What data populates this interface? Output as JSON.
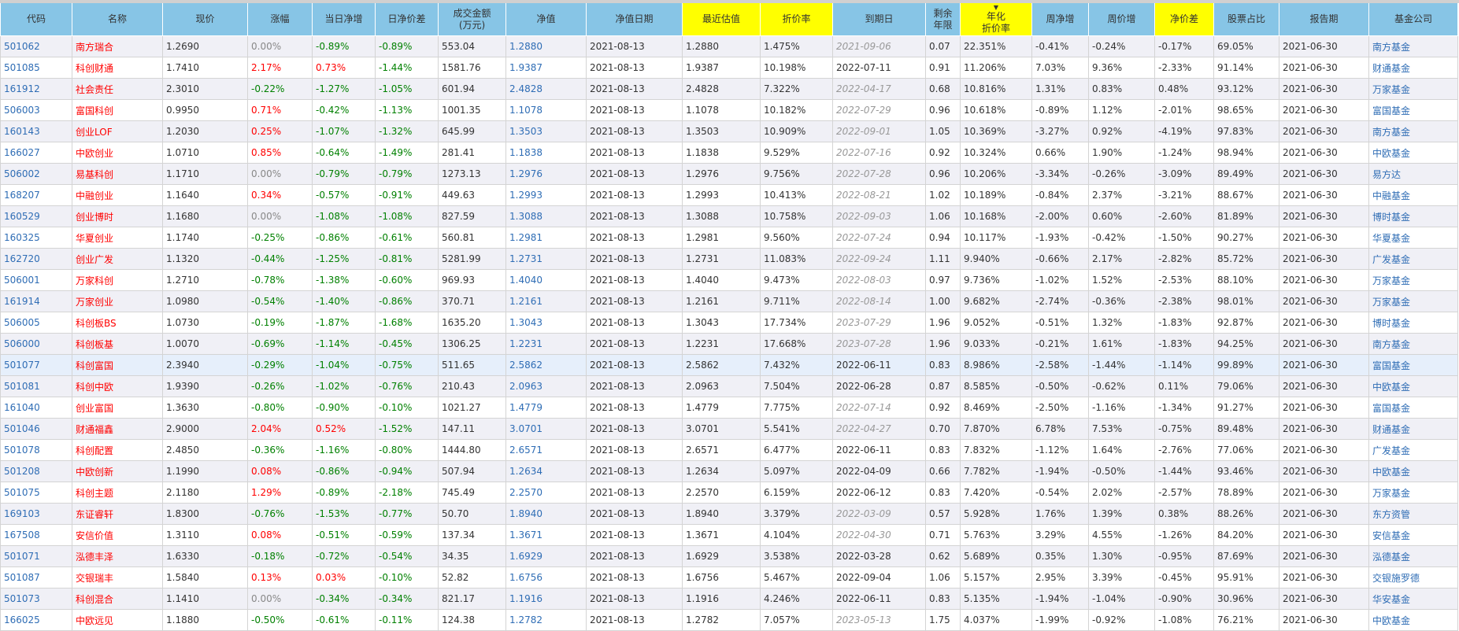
{
  "headers": [
    {
      "label": "代码",
      "highlight": false
    },
    {
      "label": "名称",
      "highlight": false
    },
    {
      "label": "现价",
      "highlight": false
    },
    {
      "label": "涨幅",
      "highlight": false
    },
    {
      "label": "当日净增",
      "highlight": false
    },
    {
      "label": "日净价差",
      "highlight": false
    },
    {
      "label": "成交金额\n(万元)",
      "highlight": false
    },
    {
      "label": "净值",
      "highlight": false
    },
    {
      "label": "净值日期",
      "highlight": false
    },
    {
      "label": "最近估值",
      "highlight": true
    },
    {
      "label": "折价率",
      "highlight": true
    },
    {
      "label": "到期日",
      "highlight": false
    },
    {
      "label": "剩余\n年限",
      "highlight": false
    },
    {
      "label": "年化\n折价率",
      "highlight": true,
      "sorted": "desc"
    },
    {
      "label": "周净增",
      "highlight": false
    },
    {
      "label": "周价增",
      "highlight": false
    },
    {
      "label": "净价差",
      "highlight": true
    },
    {
      "label": "股票占比",
      "highlight": false
    },
    {
      "label": "报告期",
      "highlight": false
    },
    {
      "label": "基金公司",
      "highlight": false
    }
  ],
  "colors": {
    "header": "#87c5e6",
    "highlight_header": "#ffff00",
    "up": "#ff0000",
    "down": "#008000",
    "link": "#2f6db5"
  },
  "sort_icon": "triangle-down-icon",
  "rows": [
    [
      "501062",
      "南方瑞合",
      "1.2690",
      "0.00%",
      "-0.89%",
      "-0.89%",
      "553.04",
      "1.2880",
      "2021-08-13",
      "1.2880",
      "1.475%",
      "2021-09-06",
      "0.07",
      "22.351%",
      "-0.41%",
      "-0.24%",
      "-0.17%",
      "69.05%",
      "2021-06-30",
      "南方基金",
      true
    ],
    [
      "501085",
      "科创财通",
      "1.7410",
      "2.17%",
      "0.73%",
      "-1.44%",
      "1581.76",
      "1.9387",
      "2021-08-13",
      "1.9387",
      "10.198%",
      "2022-07-11",
      "0.91",
      "11.206%",
      "7.03%",
      "9.36%",
      "-2.33%",
      "91.14%",
      "2021-06-30",
      "财通基金",
      false
    ],
    [
      "161912",
      "社会责任",
      "2.3010",
      "-0.22%",
      "-1.27%",
      "-1.05%",
      "601.94",
      "2.4828",
      "2021-08-13",
      "2.4828",
      "7.322%",
      "2022-04-17",
      "0.68",
      "10.816%",
      "1.31%",
      "0.83%",
      "0.48%",
      "93.12%",
      "2021-06-30",
      "万家基金",
      true
    ],
    [
      "506003",
      "富国科创",
      "0.9950",
      "0.71%",
      "-0.42%",
      "-1.13%",
      "1001.35",
      "1.1078",
      "2021-08-13",
      "1.1078",
      "10.182%",
      "2022-07-29",
      "0.96",
      "10.618%",
      "-0.89%",
      "1.12%",
      "-2.01%",
      "98.65%",
      "2021-06-30",
      "富国基金",
      true
    ],
    [
      "160143",
      "创业LOF",
      "1.2030",
      "0.25%",
      "-1.07%",
      "-1.32%",
      "645.99",
      "1.3503",
      "2021-08-13",
      "1.3503",
      "10.909%",
      "2022-09-01",
      "1.05",
      "10.369%",
      "-3.27%",
      "0.92%",
      "-4.19%",
      "97.83%",
      "2021-06-30",
      "南方基金",
      true
    ],
    [
      "166027",
      "中欧创业",
      "1.0710",
      "0.85%",
      "-0.64%",
      "-1.49%",
      "281.41",
      "1.1838",
      "2021-08-13",
      "1.1838",
      "9.529%",
      "2022-07-16",
      "0.92",
      "10.324%",
      "0.66%",
      "1.90%",
      "-1.24%",
      "98.94%",
      "2021-06-30",
      "中欧基金",
      true
    ],
    [
      "506002",
      "易基科创",
      "1.1710",
      "0.00%",
      "-0.79%",
      "-0.79%",
      "1273.13",
      "1.2976",
      "2021-08-13",
      "1.2976",
      "9.756%",
      "2022-07-28",
      "0.96",
      "10.206%",
      "-3.34%",
      "-0.26%",
      "-3.09%",
      "89.49%",
      "2021-06-30",
      "易方达",
      true
    ],
    [
      "168207",
      "中融创业",
      "1.1640",
      "0.34%",
      "-0.57%",
      "-0.91%",
      "449.63",
      "1.2993",
      "2021-08-13",
      "1.2993",
      "10.413%",
      "2022-08-21",
      "1.02",
      "10.189%",
      "-0.84%",
      "2.37%",
      "-3.21%",
      "88.67%",
      "2021-06-30",
      "中融基金",
      true
    ],
    [
      "160529",
      "创业博时",
      "1.1680",
      "0.00%",
      "-1.08%",
      "-1.08%",
      "827.59",
      "1.3088",
      "2021-08-13",
      "1.3088",
      "10.758%",
      "2022-09-03",
      "1.06",
      "10.168%",
      "-2.00%",
      "0.60%",
      "-2.60%",
      "81.89%",
      "2021-06-30",
      "博时基金",
      true
    ],
    [
      "160325",
      "华夏创业",
      "1.1740",
      "-0.25%",
      "-0.86%",
      "-0.61%",
      "560.81",
      "1.2981",
      "2021-08-13",
      "1.2981",
      "9.560%",
      "2022-07-24",
      "0.94",
      "10.117%",
      "-1.93%",
      "-0.42%",
      "-1.50%",
      "90.27%",
      "2021-06-30",
      "华夏基金",
      true
    ],
    [
      "162720",
      "创业广发",
      "1.1320",
      "-0.44%",
      "-1.25%",
      "-0.81%",
      "5281.99",
      "1.2731",
      "2021-08-13",
      "1.2731",
      "11.083%",
      "2022-09-24",
      "1.11",
      "9.940%",
      "-0.66%",
      "2.17%",
      "-2.82%",
      "85.72%",
      "2021-06-30",
      "广发基金",
      true
    ],
    [
      "506001",
      "万家科创",
      "1.2710",
      "-0.78%",
      "-1.38%",
      "-0.60%",
      "969.93",
      "1.4040",
      "2021-08-13",
      "1.4040",
      "9.473%",
      "2022-08-03",
      "0.97",
      "9.736%",
      "-1.02%",
      "1.52%",
      "-2.53%",
      "88.10%",
      "2021-06-30",
      "万家基金",
      true
    ],
    [
      "161914",
      "万家创业",
      "1.0980",
      "-0.54%",
      "-1.40%",
      "-0.86%",
      "370.71",
      "1.2161",
      "2021-08-13",
      "1.2161",
      "9.711%",
      "2022-08-14",
      "1.00",
      "9.682%",
      "-2.74%",
      "-0.36%",
      "-2.38%",
      "98.01%",
      "2021-06-30",
      "万家基金",
      true
    ],
    [
      "506005",
      "科创板BS",
      "1.0730",
      "-0.19%",
      "-1.87%",
      "-1.68%",
      "1635.20",
      "1.3043",
      "2021-08-13",
      "1.3043",
      "17.734%",
      "2023-07-29",
      "1.96",
      "9.052%",
      "-0.51%",
      "1.32%",
      "-1.83%",
      "92.87%",
      "2021-06-30",
      "博时基金",
      true
    ],
    [
      "506000",
      "科创板基",
      "1.0070",
      "-0.69%",
      "-1.14%",
      "-0.45%",
      "1306.25",
      "1.2231",
      "2021-08-13",
      "1.2231",
      "17.668%",
      "2023-07-28",
      "1.96",
      "9.033%",
      "-0.21%",
      "1.61%",
      "-1.83%",
      "94.25%",
      "2021-06-30",
      "南方基金",
      true
    ],
    [
      "501077",
      "科创富国",
      "2.3940",
      "-0.29%",
      "-1.04%",
      "-0.75%",
      "511.65",
      "2.5862",
      "2021-08-13",
      "2.5862",
      "7.432%",
      "2022-06-11",
      "0.83",
      "8.986%",
      "-2.58%",
      "-1.44%",
      "-1.14%",
      "99.89%",
      "2021-06-30",
      "富国基金",
      false
    ],
    [
      "501081",
      "科创中欧",
      "1.9390",
      "-0.26%",
      "-1.02%",
      "-0.76%",
      "210.43",
      "2.0963",
      "2021-08-13",
      "2.0963",
      "7.504%",
      "2022-06-28",
      "0.87",
      "8.585%",
      "-0.50%",
      "-0.62%",
      "0.11%",
      "79.06%",
      "2021-06-30",
      "中欧基金",
      false
    ],
    [
      "161040",
      "创业富国",
      "1.3630",
      "-0.80%",
      "-0.90%",
      "-0.10%",
      "1021.27",
      "1.4779",
      "2021-08-13",
      "1.4779",
      "7.775%",
      "2022-07-14",
      "0.92",
      "8.469%",
      "-2.50%",
      "-1.16%",
      "-1.34%",
      "91.27%",
      "2021-06-30",
      "富国基金",
      true
    ],
    [
      "501046",
      "财通福鑫",
      "2.9000",
      "2.04%",
      "0.52%",
      "-1.52%",
      "147.11",
      "3.0701",
      "2021-08-13",
      "3.0701",
      "5.541%",
      "2022-04-27",
      "0.70",
      "7.870%",
      "6.78%",
      "7.53%",
      "-0.75%",
      "89.48%",
      "2021-06-30",
      "财通基金",
      true
    ],
    [
      "501078",
      "科创配置",
      "2.4850",
      "-0.36%",
      "-1.16%",
      "-0.80%",
      "1444.80",
      "2.6571",
      "2021-08-13",
      "2.6571",
      "6.477%",
      "2022-06-11",
      "0.83",
      "7.832%",
      "-1.12%",
      "1.64%",
      "-2.76%",
      "77.06%",
      "2021-06-30",
      "广发基金",
      false
    ],
    [
      "501208",
      "中欧创新",
      "1.1990",
      "0.08%",
      "-0.86%",
      "-0.94%",
      "507.94",
      "1.2634",
      "2021-08-13",
      "1.2634",
      "5.097%",
      "2022-04-09",
      "0.66",
      "7.782%",
      "-1.94%",
      "-0.50%",
      "-1.44%",
      "93.46%",
      "2021-06-30",
      "中欧基金",
      false
    ],
    [
      "501075",
      "科创主题",
      "2.1180",
      "1.29%",
      "-0.89%",
      "-2.18%",
      "745.49",
      "2.2570",
      "2021-08-13",
      "2.2570",
      "6.159%",
      "2022-06-12",
      "0.83",
      "7.420%",
      "-0.54%",
      "2.02%",
      "-2.57%",
      "78.89%",
      "2021-06-30",
      "万家基金",
      false
    ],
    [
      "169103",
      "东证睿轩",
      "1.8300",
      "-0.76%",
      "-1.53%",
      "-0.77%",
      "50.70",
      "1.8940",
      "2021-08-13",
      "1.8940",
      "3.379%",
      "2022-03-09",
      "0.57",
      "5.928%",
      "1.76%",
      "1.39%",
      "0.38%",
      "88.26%",
      "2021-06-30",
      "东方资管",
      true
    ],
    [
      "167508",
      "安信价值",
      "1.3110",
      "0.08%",
      "-0.51%",
      "-0.59%",
      "137.34",
      "1.3671",
      "2021-08-13",
      "1.3671",
      "4.104%",
      "2022-04-30",
      "0.71",
      "5.763%",
      "3.29%",
      "4.55%",
      "-1.26%",
      "84.20%",
      "2021-06-30",
      "安信基金",
      true
    ],
    [
      "501071",
      "泓德丰泽",
      "1.6330",
      "-0.18%",
      "-0.72%",
      "-0.54%",
      "34.35",
      "1.6929",
      "2021-08-13",
      "1.6929",
      "3.538%",
      "2022-03-28",
      "0.62",
      "5.689%",
      "0.35%",
      "1.30%",
      "-0.95%",
      "87.69%",
      "2021-06-30",
      "泓德基金",
      false
    ],
    [
      "501087",
      "交银瑞丰",
      "1.5840",
      "0.13%",
      "0.03%",
      "-0.10%",
      "52.82",
      "1.6756",
      "2021-08-13",
      "1.6756",
      "5.467%",
      "2022-09-04",
      "1.06",
      "5.157%",
      "2.95%",
      "3.39%",
      "-0.45%",
      "95.91%",
      "2021-06-30",
      "交银施罗德",
      false
    ],
    [
      "501073",
      "科创混合",
      "1.1410",
      "0.00%",
      "-0.34%",
      "-0.34%",
      "821.17",
      "1.1916",
      "2021-08-13",
      "1.1916",
      "4.246%",
      "2022-06-11",
      "0.83",
      "5.135%",
      "-1.94%",
      "-1.04%",
      "-0.90%",
      "30.96%",
      "2021-06-30",
      "华安基金",
      false
    ],
    [
      "166025",
      "中欧远见",
      "1.1880",
      "-0.50%",
      "-0.61%",
      "-0.11%",
      "124.38",
      "1.2782",
      "2021-08-13",
      "1.2782",
      "7.057%",
      "2023-05-13",
      "1.75",
      "4.037%",
      "-1.99%",
      "-0.92%",
      "-1.08%",
      "76.21%",
      "2021-06-30",
      "中欧基金",
      true
    ]
  ]
}
